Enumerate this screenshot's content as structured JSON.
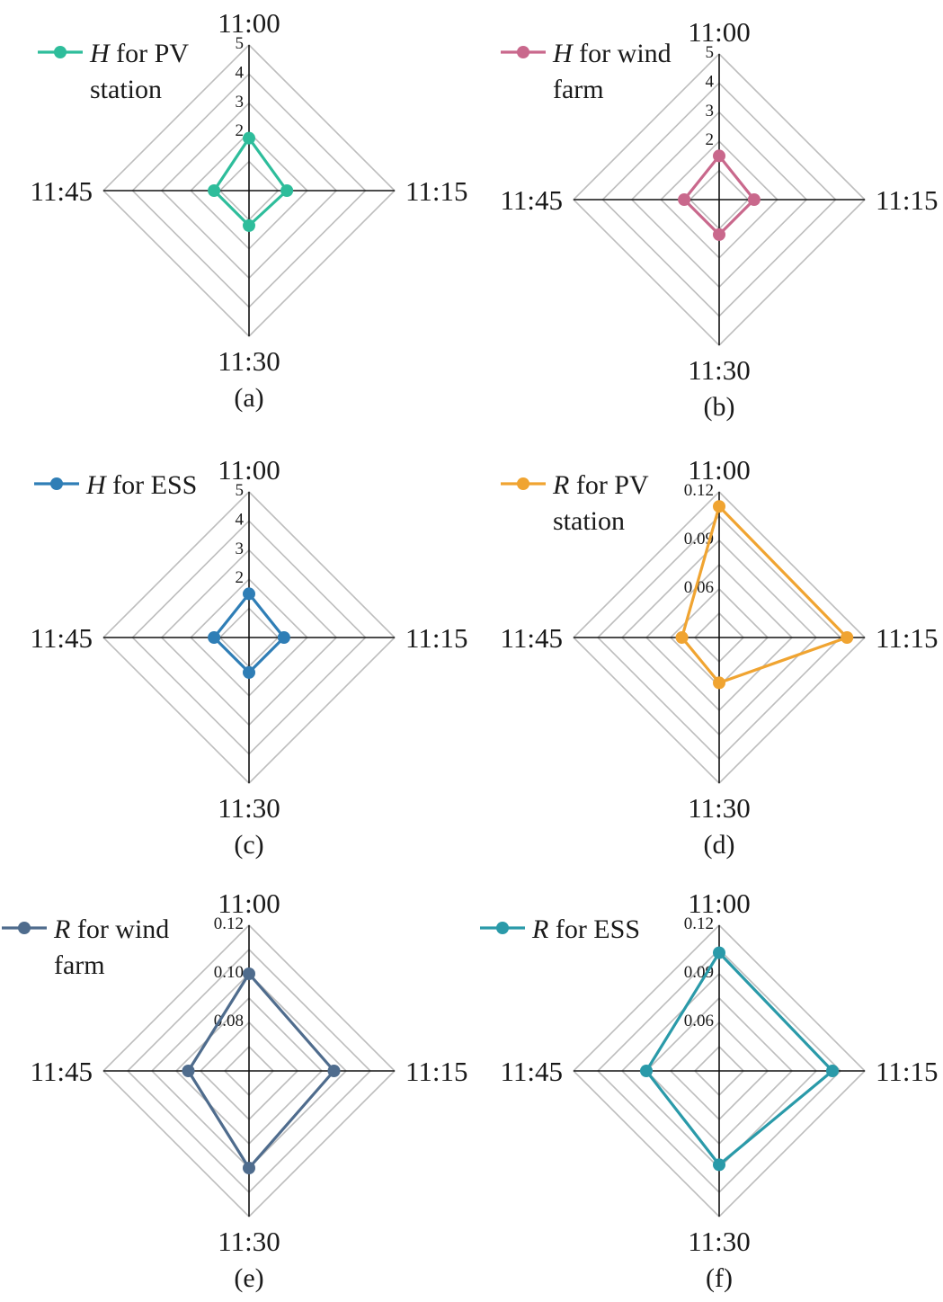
{
  "chart_data": [
    {
      "type": "radar",
      "panel_label": "(a)",
      "legend": {
        "symbol": "H",
        "lines": [
          " for PV",
          "station"
        ]
      },
      "series_name": "H for PV station",
      "color": "#2ebd9b",
      "axes": [
        "11:00",
        "11:15",
        "11:30",
        "11:45"
      ],
      "rings": [
        1,
        2,
        3,
        4,
        5
      ],
      "tick_labels": [
        "2",
        "3",
        "4",
        "5"
      ],
      "range": [
        0,
        5
      ],
      "values": [
        1.8,
        1.3,
        1.2,
        1.2
      ]
    },
    {
      "type": "radar",
      "panel_label": "(b)",
      "legend": {
        "symbol": "H",
        "lines": [
          " for wind",
          "farm"
        ]
      },
      "series_name": "H for wind farm",
      "color": "#c9688c",
      "axes": [
        "11:00",
        "11:15",
        "11:30",
        "11:45"
      ],
      "rings": [
        1,
        2,
        3,
        4,
        5
      ],
      "tick_labels": [
        "2",
        "3",
        "4",
        "5"
      ],
      "range": [
        0,
        5
      ],
      "values": [
        1.5,
        1.2,
        1.2,
        1.2
      ]
    },
    {
      "type": "radar",
      "panel_label": "(c)",
      "legend": {
        "symbol": "H",
        "lines": [
          " for ESS"
        ]
      },
      "series_name": "H for ESS",
      "color": "#2f7eb6",
      "axes": [
        "11:00",
        "11:15",
        "11:30",
        "11:45"
      ],
      "rings": [
        1,
        2,
        3,
        4,
        5
      ],
      "tick_labels": [
        "2",
        "3",
        "4",
        "5"
      ],
      "range": [
        0,
        5
      ],
      "values": [
        1.5,
        1.2,
        1.2,
        1.2
      ]
    },
    {
      "type": "radar",
      "panel_label": "(d)",
      "legend": {
        "symbol": "R",
        "lines": [
          " for PV",
          "station"
        ]
      },
      "series_name": "R for PV station",
      "color": "#f0a431",
      "axes": [
        "11:00",
        "11:15",
        "11:30",
        "11:45"
      ],
      "rings": [
        0.03,
        0.045,
        0.06,
        0.075,
        0.09,
        0.105,
        0.12
      ],
      "tick_labels": [
        "0.06",
        "0.09",
        "0.12"
      ],
      "tick_values": [
        0.06,
        0.09,
        0.12
      ],
      "range": [
        0.03,
        0.12
      ],
      "values": [
        0.111,
        0.109,
        0.058,
        0.053
      ]
    },
    {
      "type": "radar",
      "panel_label": "(e)",
      "legend": {
        "symbol": "R",
        "lines": [
          " for wind",
          "farm"
        ]
      },
      "series_name": "R for wind farm",
      "color": "#4f6c8d",
      "axes": [
        "11:00",
        "11:15",
        "11:30",
        "11:45"
      ],
      "rings": [
        0.06,
        0.07,
        0.08,
        0.09,
        0.1,
        0.11,
        0.12
      ],
      "tick_labels": [
        "0.08",
        "0.10",
        "0.12"
      ],
      "tick_values": [
        0.08,
        0.1,
        0.12
      ],
      "range": [
        0.06,
        0.12
      ],
      "values": [
        0.1,
        0.095,
        0.1,
        0.085
      ]
    },
    {
      "type": "radar",
      "panel_label": "(f)",
      "legend": {
        "symbol": "R",
        "lines": [
          " for ESS"
        ]
      },
      "series_name": "R for ESS",
      "color": "#2a9aa9",
      "axes": [
        "11:00",
        "11:15",
        "11:30",
        "11:45"
      ],
      "rings": [
        0.03,
        0.045,
        0.06,
        0.075,
        0.09,
        0.105,
        0.12
      ],
      "tick_labels": [
        "0.06",
        "0.09",
        "0.12"
      ],
      "tick_values": [
        0.06,
        0.09,
        0.12
      ],
      "range": [
        0.03,
        0.12
      ],
      "values": [
        0.103,
        0.1,
        0.088,
        0.075
      ]
    }
  ]
}
